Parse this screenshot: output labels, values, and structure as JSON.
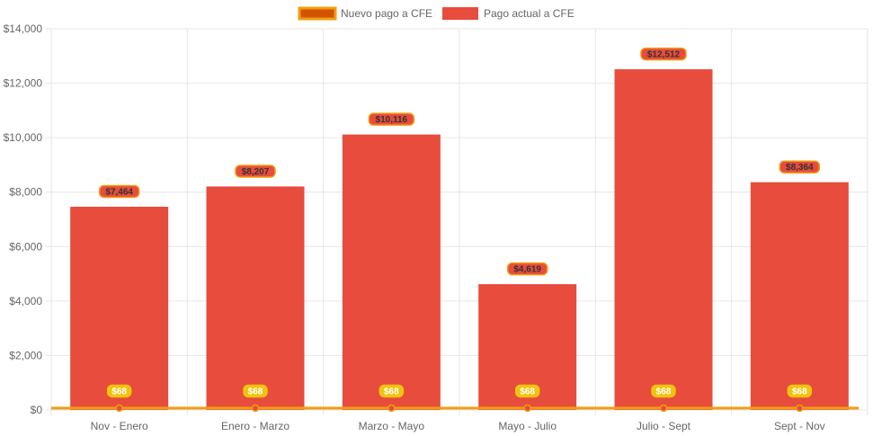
{
  "chart_data": {
    "type": "bar",
    "title": "",
    "xlabel": "",
    "ylabel": "",
    "categories": [
      "Nov - Enero",
      "Enero - Marzo",
      "Marzo - Mayo",
      "Mayo - Julio",
      "Julio - Sept",
      "Sept - Nov"
    ],
    "ylim": [
      0,
      14000
    ],
    "y_ticks": [
      0,
      2000,
      4000,
      6000,
      8000,
      10000,
      12000,
      14000
    ],
    "y_tick_labels": [
      "$0",
      "$2,000",
      "$4,000",
      "$6,000",
      "$8,000",
      "$10,000",
      "$12,000",
      "$14,000"
    ],
    "grid": true,
    "legend_position": "top-center",
    "series": [
      {
        "name": "Nuevo pago a CFE",
        "type": "line",
        "color": "#f39c12",
        "legend_fill": "#d35400",
        "point_color": "#e74c3c",
        "label_bg": "#f1c40f",
        "label_text_color": "#ffffff",
        "values": [
          68,
          68,
          68,
          68,
          68,
          68
        ],
        "labels": [
          "$68",
          "$68",
          "$68",
          "$68",
          "$68",
          "$68"
        ]
      },
      {
        "name": "Pago actual a CFE",
        "type": "bar",
        "color": "#e74c3c",
        "label_bg": "#e74c3c",
        "label_border": "#f39c12",
        "label_text_color": "#333333",
        "values": [
          7464,
          8207,
          10116,
          4619,
          12512,
          8364
        ],
        "labels": [
          "$7,464",
          "$8,207",
          "$10,116",
          "$4,619",
          "$12,512",
          "$8,364"
        ]
      }
    ]
  }
}
